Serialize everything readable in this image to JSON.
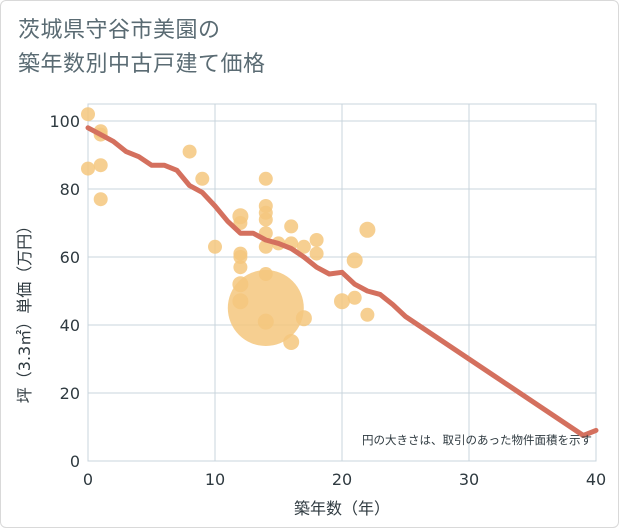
{
  "title_line1": "茨城県守谷市美園の",
  "title_line2": "築年数別中古戸建て価格",
  "chart_data": {
    "type": "scatter",
    "xlabel": "築年数（年）",
    "ylabel": "坪（3.3㎡）単価（万円）",
    "xlim": [
      0,
      40
    ],
    "ylim": [
      0,
      105
    ],
    "xticks": [
      0,
      10,
      20,
      30,
      40
    ],
    "yticks": [
      0,
      20,
      40,
      60,
      80,
      100
    ],
    "grid": true,
    "note": "円の大きさは、取引のあった物件面積を示す",
    "colors": {
      "points": "#f5c77e",
      "trend": "#d4705e",
      "grid": "#c9d4dc",
      "frame": "#c9d4dc"
    },
    "points": [
      {
        "x": 0,
        "y": 102,
        "r": 7
      },
      {
        "x": 0,
        "y": 86,
        "r": 7
      },
      {
        "x": 1,
        "y": 97,
        "r": 7
      },
      {
        "x": 1,
        "y": 96,
        "r": 7
      },
      {
        "x": 1,
        "y": 87,
        "r": 7
      },
      {
        "x": 1,
        "y": 77,
        "r": 7
      },
      {
        "x": 8,
        "y": 91,
        "r": 7
      },
      {
        "x": 9,
        "y": 83,
        "r": 7
      },
      {
        "x": 10,
        "y": 63,
        "r": 7
      },
      {
        "x": 12,
        "y": 72,
        "r": 8
      },
      {
        "x": 12,
        "y": 70,
        "r": 7
      },
      {
        "x": 12,
        "y": 61,
        "r": 7
      },
      {
        "x": 12,
        "y": 60,
        "r": 7
      },
      {
        "x": 12,
        "y": 57,
        "r": 7
      },
      {
        "x": 12,
        "y": 52,
        "r": 8
      },
      {
        "x": 12,
        "y": 47,
        "r": 8
      },
      {
        "x": 14,
        "y": 83,
        "r": 7
      },
      {
        "x": 14,
        "y": 75,
        "r": 7
      },
      {
        "x": 14,
        "y": 73,
        "r": 7
      },
      {
        "x": 14,
        "y": 71,
        "r": 7
      },
      {
        "x": 14,
        "y": 67,
        "r": 7
      },
      {
        "x": 14,
        "y": 63,
        "r": 7
      },
      {
        "x": 14,
        "y": 55,
        "r": 7
      },
      {
        "x": 14,
        "y": 45,
        "r": 38
      },
      {
        "x": 14,
        "y": 41,
        "r": 8
      },
      {
        "x": 15,
        "y": 64,
        "r": 7
      },
      {
        "x": 16,
        "y": 69,
        "r": 7
      },
      {
        "x": 16,
        "y": 64,
        "r": 7
      },
      {
        "x": 16,
        "y": 35,
        "r": 8
      },
      {
        "x": 17,
        "y": 63,
        "r": 7
      },
      {
        "x": 17,
        "y": 42,
        "r": 8
      },
      {
        "x": 18,
        "y": 65,
        "r": 7
      },
      {
        "x": 18,
        "y": 61,
        "r": 7
      },
      {
        "x": 20,
        "y": 47,
        "r": 8
      },
      {
        "x": 21,
        "y": 59,
        "r": 8
      },
      {
        "x": 21,
        "y": 48,
        "r": 7
      },
      {
        "x": 22,
        "y": 68,
        "r": 8
      },
      {
        "x": 22,
        "y": 43,
        "r": 7
      }
    ],
    "trend": {
      "x": [
        0,
        1,
        2,
        3,
        4,
        5,
        6,
        7,
        8,
        9,
        10,
        11,
        12,
        13,
        14,
        15,
        16,
        17,
        18,
        19,
        20,
        21,
        22,
        23,
        24,
        25,
        26,
        27,
        28,
        29,
        30,
        31,
        32,
        33,
        34,
        35,
        36,
        37,
        38,
        39,
        40
      ],
      "y": [
        98,
        96,
        94,
        91,
        89.5,
        87,
        87,
        85.5,
        81,
        79,
        75,
        70.5,
        67,
        67,
        65,
        64,
        62.5,
        60,
        57,
        55,
        55.5,
        52,
        50,
        49,
        46,
        42.5,
        40,
        37.5,
        35,
        32.5,
        30,
        27.5,
        25,
        22.5,
        20,
        17.5,
        15,
        12.5,
        10,
        7.5,
        9
      ]
    }
  }
}
